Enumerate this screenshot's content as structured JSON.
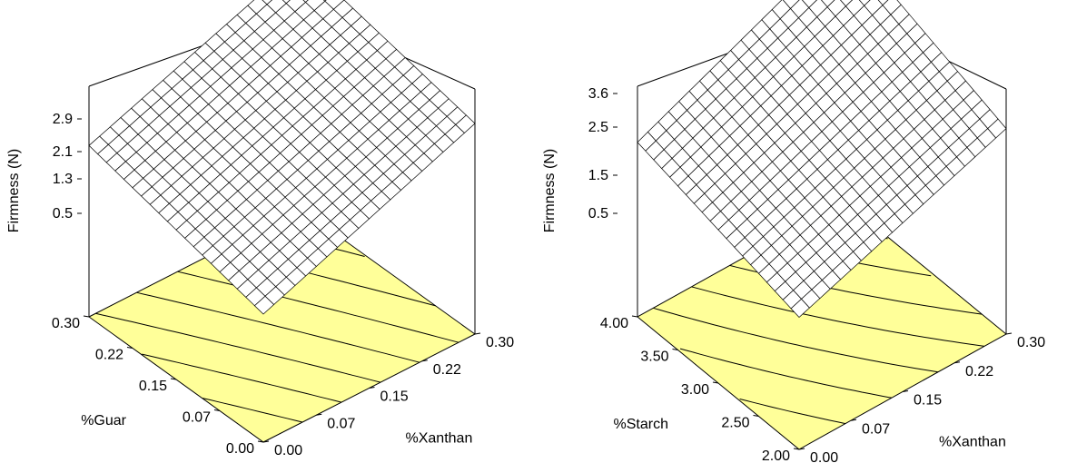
{
  "chart_data": [
    {
      "type": "surface3d",
      "title": "",
      "zlabel": "Firmness (N)",
      "xlabel": "%Xanthan",
      "ylabel": "%Guar",
      "x_ticks": [
        "0.00",
        "0.07",
        "0.15",
        "0.22",
        "0.30"
      ],
      "y_ticks": [
        "0.00",
        "0.07",
        "0.15",
        "0.22",
        "0.30"
      ],
      "z_ticks": [
        "0.5",
        "1.3",
        "2.1",
        "2.9"
      ],
      "xlim": [
        0,
        0.3
      ],
      "ylim": [
        0,
        0.3
      ],
      "surface_corners": {
        "x0_y0": 0.2,
        "x1_y0": 2.3,
        "x0_y1": 1.3,
        "x1_y1": 3.3
      },
      "contour_floor_color": "#ffff99",
      "mesh_color": "#000000"
    },
    {
      "type": "surface3d",
      "title": "",
      "zlabel": "Firmness (N)",
      "xlabel": "%Xanthan",
      "ylabel": "%Starch",
      "x_ticks": [
        "0.00",
        "0.07",
        "0.15",
        "0.22",
        "0.30"
      ],
      "y_ticks": [
        "2.00",
        "2.50",
        "3.00",
        "3.50",
        "4.00"
      ],
      "z_ticks": [
        "0.5",
        "1.5",
        "2.5",
        "3.6"
      ],
      "xlim": [
        0,
        0.3
      ],
      "ylim": [
        2.0,
        4.0
      ],
      "surface_corners": {
        "x0_y0": 0.3,
        "x1_y0": 2.2,
        "x0_y1": 1.4,
        "x1_y1": 3.7
      },
      "contour_floor_color": "#ffff99",
      "mesh_color": "#000000"
    }
  ]
}
